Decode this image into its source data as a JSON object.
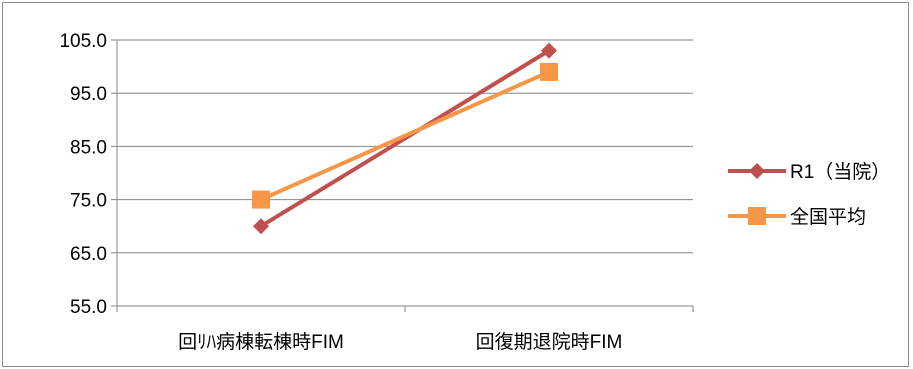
{
  "chart_data": {
    "type": "line",
    "categories": [
      "回ﾘﾊ病棟転棟時FIM",
      "回復期退院時FIM"
    ],
    "series": [
      {
        "name": "R1（当院）",
        "values": [
          70.0,
          103.0
        ],
        "color": "#c0504d",
        "marker": "diamond"
      },
      {
        "name": "全国平均",
        "values": [
          75.0,
          99.0
        ],
        "color": "#f79646",
        "marker": "square"
      }
    ],
    "ylim": [
      55.0,
      105.0
    ],
    "yticks": [
      "105.0",
      "95.0",
      "85.0",
      "75.0",
      "65.0",
      "55.0"
    ],
    "ytick_values": [
      105,
      95,
      85,
      75,
      65,
      55
    ],
    "grid": true,
    "legend_position": "right"
  }
}
